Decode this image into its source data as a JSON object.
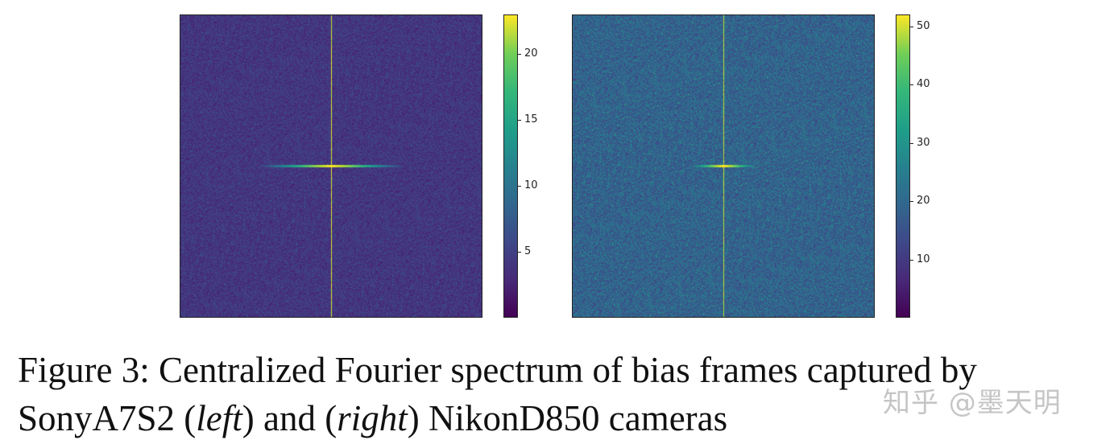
{
  "figure": {
    "panels": [
      {
        "id": "left",
        "colorbar_ticks": [
          "5",
          "10",
          "15",
          "20"
        ],
        "colorbar_range": [
          0,
          23
        ],
        "tick_values": [
          5,
          10,
          15,
          20
        ]
      },
      {
        "id": "right",
        "colorbar_ticks": [
          "10",
          "20",
          "30",
          "40",
          "50"
        ],
        "colorbar_range": [
          0,
          52
        ],
        "tick_values": [
          10,
          20,
          30,
          40,
          50
        ]
      }
    ]
  },
  "chart_data": [
    {
      "type": "heatmap",
      "colormap": "viridis",
      "colorbar_ticks": [
        5,
        10,
        15,
        20
      ],
      "colorbar_range": [
        0,
        23
      ],
      "features": [
        "vertical bright line through center",
        "bright horizontal streak at center"
      ]
    },
    {
      "type": "heatmap",
      "colormap": "viridis",
      "colorbar_ticks": [
        10,
        20,
        30,
        40,
        50
      ],
      "colorbar_range": [
        0,
        52
      ],
      "features": [
        "vertical bright line through center",
        "faint horizontal streak at center"
      ]
    }
  ],
  "caption": {
    "prefix": "Figure 3: Centralized Fourier spectrum of bias frames captured by SonyA7S2 (",
    "left_word": "left",
    "middle": ") and (",
    "right_word": "right",
    "suffix": ") NikonD850 cameras"
  },
  "watermark": "知乎 @墨天明"
}
